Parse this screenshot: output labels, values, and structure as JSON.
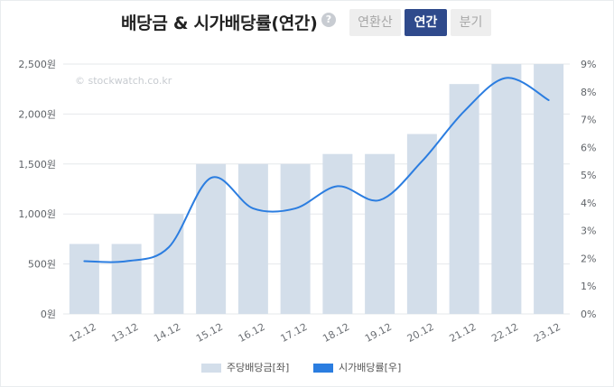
{
  "header": {
    "title": "배당금 & 시가배당률(연간)",
    "help_icon": "question-circle-icon",
    "tabs": [
      {
        "label": "연환산",
        "active": false
      },
      {
        "label": "연간",
        "active": true
      },
      {
        "label": "분기",
        "active": false
      }
    ]
  },
  "watermark": "© stockwatch.co.kr",
  "legend": {
    "bar_label": "주당배당금[좌]",
    "line_label": "시가배당률[우]"
  },
  "colors": {
    "bar": "#d3deea",
    "line": "#2b7de0",
    "grid": "#e6e8eb",
    "tab_active": "#2f4a8c",
    "tab_inactive": "#eeeeee"
  },
  "chart_data": {
    "type": "bar",
    "categories": [
      "12.12",
      "13.12",
      "14.12",
      "15.12",
      "16.12",
      "17.12",
      "18.12",
      "19.12",
      "20.12",
      "21.12",
      "22.12",
      "23.12"
    ],
    "series": [
      {
        "name": "주당배당금[좌]",
        "type": "bar",
        "axis": "left",
        "values": [
          700,
          700,
          1000,
          1500,
          1500,
          1500,
          1600,
          1600,
          1800,
          2300,
          2500,
          2500
        ]
      },
      {
        "name": "시가배당률[우]",
        "type": "line",
        "axis": "right",
        "values": [
          1.9,
          1.9,
          2.4,
          4.9,
          3.8,
          3.8,
          4.6,
          4.1,
          5.5,
          7.3,
          8.5,
          7.7
        ]
      }
    ],
    "left_axis": {
      "ticks": [
        "0원",
        "500원",
        "1,000원",
        "1,500원",
        "2,000원",
        "2,500원"
      ],
      "ylim": [
        0,
        2500
      ]
    },
    "right_axis": {
      "ticks": [
        "0%",
        "1%",
        "2%",
        "3%",
        "4%",
        "5%",
        "6%",
        "7%",
        "8%",
        "9%"
      ],
      "ylim": [
        0,
        9
      ]
    },
    "grid": true,
    "legend_position": "bottom"
  }
}
